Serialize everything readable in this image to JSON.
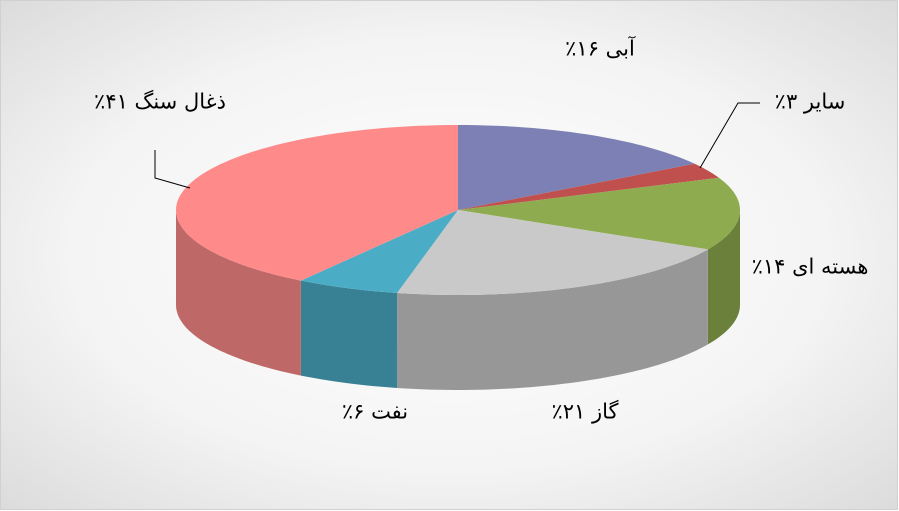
{
  "chart_data": {
    "type": "pie",
    "values": [
      16,
      3,
      14,
      21,
      6,
      41
    ],
    "value_labels": [
      "آبی ۱۶٪",
      "سایر ۳٪",
      "هسته ای ۱۴٪",
      "گاز ۲۱٪",
      "نفت ۶٪",
      "ذغال سنگ ۴۱٪"
    ],
    "colors": [
      "#7d80b4",
      "#c0504d",
      "#8eab4f",
      "#c9c9c9",
      "#4bacc6",
      "#ff8a8a"
    ]
  }
}
